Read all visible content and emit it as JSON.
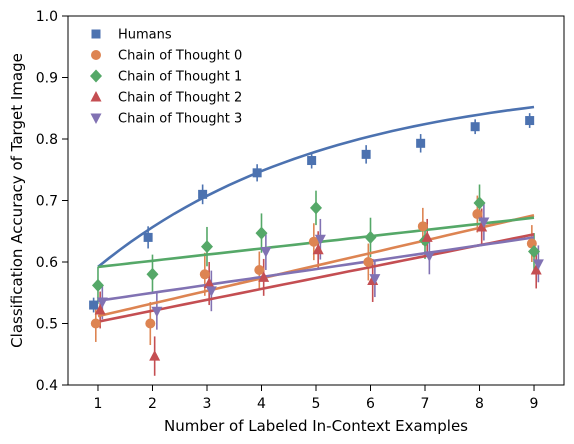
{
  "chart_data": {
    "type": "scatter",
    "xlabel": "Number of Labeled In-Context Examples",
    "ylabel": "Classification Accuracy of Target Image",
    "xlim": [
      0.45,
      9.55
    ],
    "ylim": [
      0.4,
      1.0
    ],
    "x_ticks": [
      "1",
      "2",
      "3",
      "4",
      "5",
      "6",
      "7",
      "8",
      "9"
    ],
    "y_ticks": [
      "0.4",
      "0.5",
      "0.6",
      "0.7",
      "0.8",
      "0.9",
      "1.0"
    ],
    "grid": false,
    "legend_position": "top-left",
    "series": [
      {
        "name": "Humans",
        "marker": "square",
        "color": "#4c72b0",
        "x": [
          0.92,
          1.92,
          2.92,
          3.92,
          4.92,
          5.92,
          6.92,
          7.92,
          8.92
        ],
        "y": [
          0.53,
          0.64,
          0.71,
          0.745,
          0.765,
          0.775,
          0.793,
          0.82,
          0.83
        ],
        "err": [
          0.012,
          0.018,
          0.016,
          0.014,
          0.013,
          0.015,
          0.015,
          0.012,
          0.012
        ],
        "fit": {
          "x": [
            1,
            9
          ],
          "y": [
            0.592,
            0.852
          ]
        }
      },
      {
        "name": "Chain of Thought 0",
        "marker": "circle",
        "color": "#dd8452",
        "x": [
          0.96,
          1.96,
          2.96,
          3.96,
          4.96,
          5.96,
          6.96,
          7.96,
          8.96
        ],
        "y": [
          0.5,
          0.5,
          0.58,
          0.587,
          0.633,
          0.6,
          0.658,
          0.678,
          0.63
        ],
        "err": [
          0.03,
          0.035,
          0.035,
          0.03,
          0.03,
          0.03,
          0.03,
          0.03,
          0.03
        ],
        "fit": {
          "x": [
            1,
            9
          ],
          "y": [
            0.512,
            0.676
          ]
        }
      },
      {
        "name": "Chain of Thought 1",
        "marker": "diamond",
        "color": "#55a868",
        "x": [
          1.0,
          2.0,
          3.0,
          4.0,
          5.0,
          6.0,
          7.0,
          8.0,
          9.0
        ],
        "y": [
          0.562,
          0.58,
          0.625,
          0.647,
          0.688,
          0.64,
          0.635,
          0.696,
          0.617
        ],
        "err": [
          0.03,
          0.032,
          0.032,
          0.032,
          0.028,
          0.032,
          0.03,
          0.03,
          0.03
        ],
        "fit": {
          "x": [
            1,
            9
          ],
          "y": [
            0.592,
            0.672
          ]
        }
      },
      {
        "name": "Chain of Thought 2",
        "marker": "triangle-up",
        "color": "#c44e52",
        "x": [
          1.04,
          2.04,
          3.04,
          4.04,
          5.04,
          6.04,
          7.04,
          8.04,
          9.04
        ],
        "y": [
          0.522,
          0.447,
          0.565,
          0.575,
          0.62,
          0.57,
          0.64,
          0.657,
          0.587
        ],
        "err": [
          0.03,
          0.032,
          0.035,
          0.03,
          0.03,
          0.035,
          0.03,
          0.03,
          0.03
        ],
        "fit": {
          "x": [
            1,
            9
          ],
          "y": [
            0.503,
            0.645
          ]
        }
      },
      {
        "name": "Chain of Thought 3",
        "marker": "triangle-down",
        "color": "#8172b3",
        "x": [
          1.08,
          2.08,
          3.08,
          4.08,
          5.08,
          6.08,
          7.08,
          8.08,
          9.08
        ],
        "y": [
          0.535,
          0.52,
          0.553,
          0.617,
          0.637,
          0.573,
          0.61,
          0.665,
          0.597
        ],
        "err": [
          0.028,
          0.03,
          0.033,
          0.03,
          0.033,
          0.03,
          0.03,
          0.03,
          0.03
        ],
        "fit": {
          "x": [
            1,
            9
          ],
          "y": [
            0.537,
            0.64
          ]
        }
      }
    ]
  }
}
